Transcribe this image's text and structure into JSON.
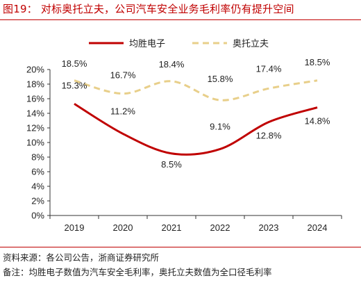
{
  "header": {
    "title": "图19：  对标奥托立夫，公司汽车安全业务毛利率仍有提升空间"
  },
  "footer": {
    "source": "资料来源：各公司公告，浙商证券研究所",
    "note": "备注：均胜电子数值为汽车安全毛利率，奥托立夫数值为全口径毛利率"
  },
  "chart_data": {
    "type": "line",
    "categories": [
      "2019",
      "2020",
      "2021",
      "2022",
      "2023",
      "2024"
    ],
    "series": [
      {
        "name": "均胜电子",
        "values": [
          15.3,
          11.2,
          8.5,
          9.1,
          12.8,
          14.8
        ],
        "labels": [
          "15.3%",
          "11.2%",
          "8.5%",
          "9.1%",
          "12.8%",
          "14.8%"
        ],
        "color": "#c00000",
        "style": "solid"
      },
      {
        "name": "奥托立夫",
        "values": [
          18.5,
          16.7,
          18.4,
          15.8,
          17.4,
          18.5
        ],
        "labels": [
          "18.5%",
          "16.7%",
          "18.4%",
          "15.8%",
          "17.4%",
          "18.5%"
        ],
        "color": "#e8cf8a",
        "style": "dashed"
      }
    ],
    "yticks": [
      "0%",
      "2%",
      "4%",
      "6%",
      "8%",
      "10%",
      "12%",
      "14%",
      "16%",
      "18%",
      "20%"
    ],
    "ylim": [
      0,
      20
    ],
    "grid": false,
    "legend_position": "top"
  }
}
